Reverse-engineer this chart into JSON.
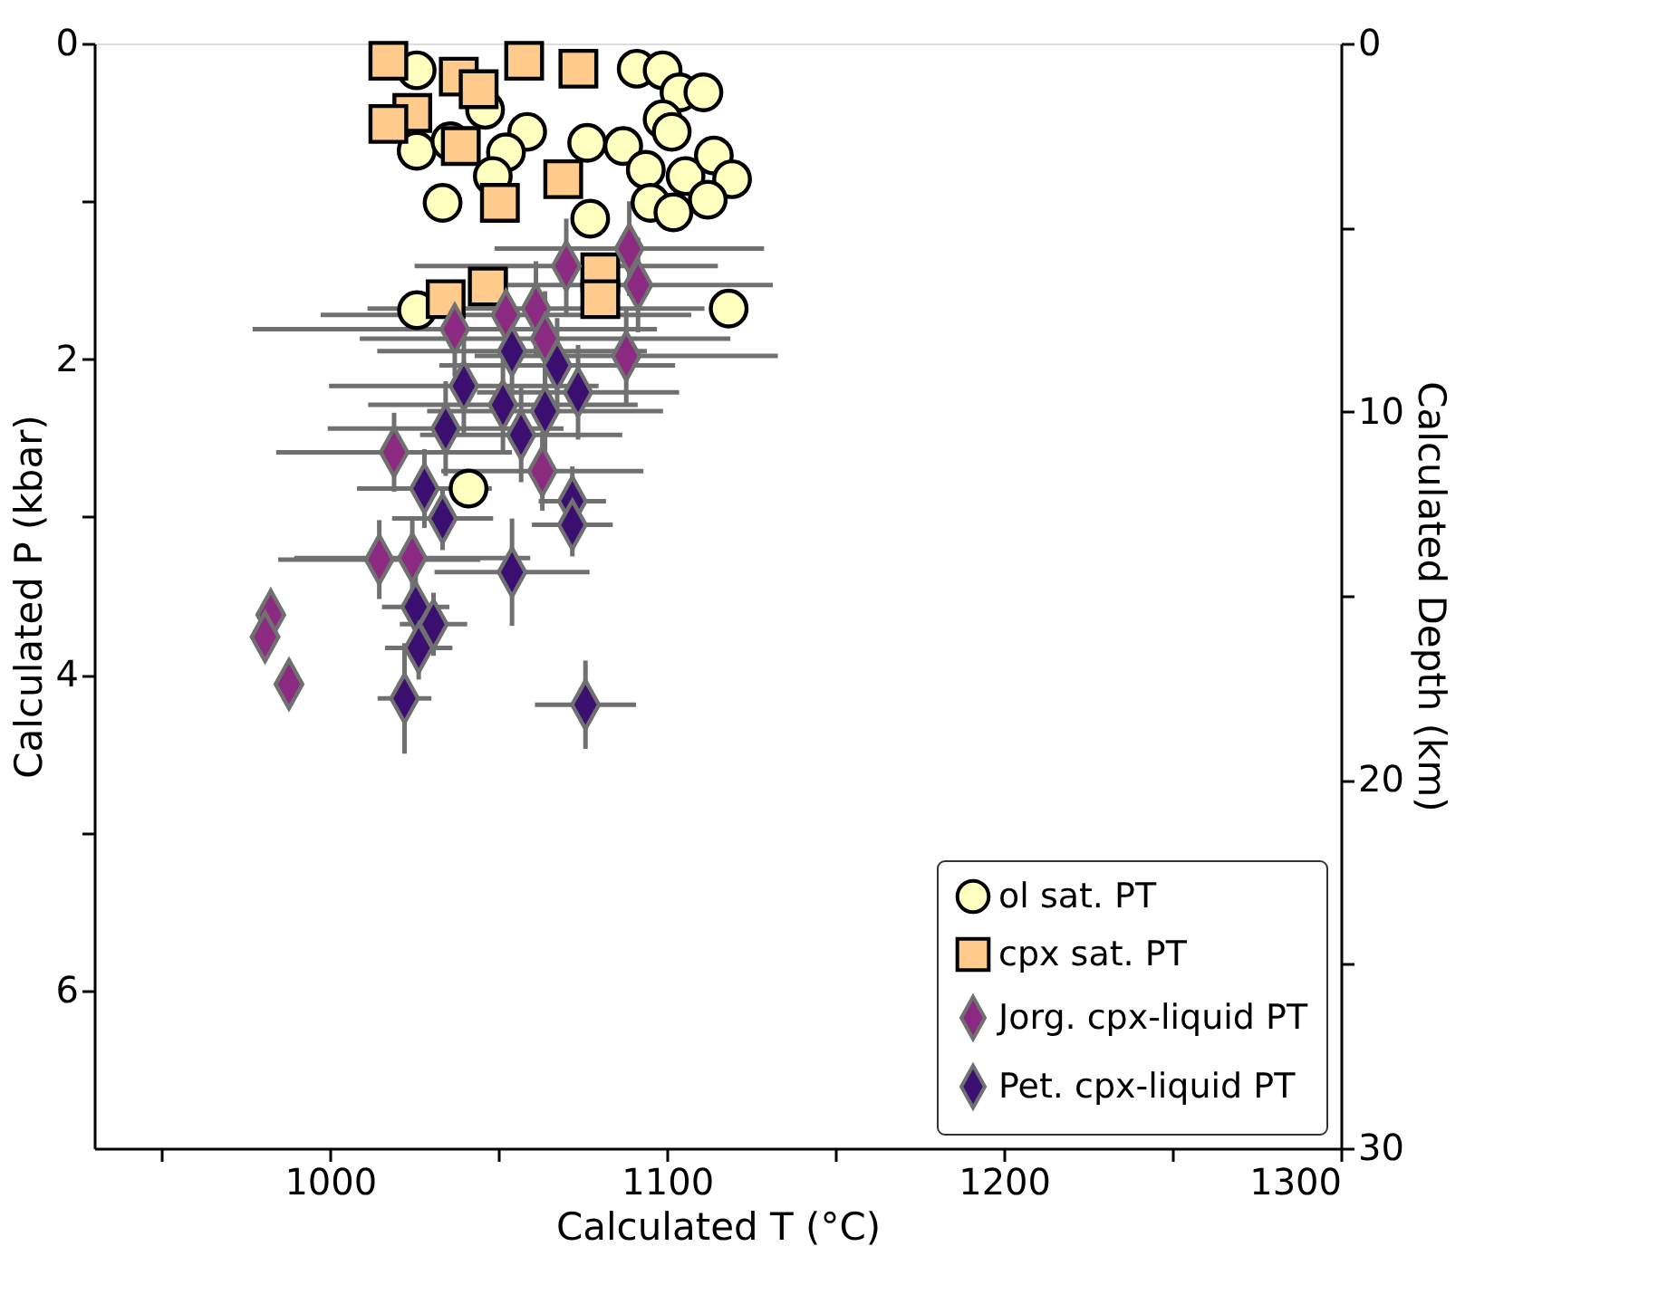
{
  "chart_data": {
    "type": "scatter",
    "xlabel": "Calculated T (°C)",
    "ylabel": "Calculated P (kbar)",
    "y2label": "Calculated Depth (km)",
    "xlim": [
      930,
      1300
    ],
    "xticks": [
      {
        "value": 950,
        "label": null
      },
      1000,
      {
        "value": 1050,
        "label": null
      },
      1100,
      {
        "value": 1150,
        "label": null
      },
      1200,
      {
        "value": 1250,
        "label": null
      },
      1300
    ],
    "ylim": [
      7,
      0
    ],
    "yticks": [
      0,
      {
        "value": 1,
        "label": null
      },
      2,
      {
        "value": 3,
        "label": null
      },
      4,
      {
        "value": 5,
        "label": null
      },
      6
    ],
    "y2lim": [
      30,
      0
    ],
    "y2ticks": [
      0,
      {
        "value": 5,
        "label": null
      },
      10,
      {
        "value": 15,
        "label": null
      },
      20,
      {
        "value": 25,
        "label": null
      },
      30
    ],
    "legend": "bottom right",
    "grid": false,
    "series": [
      {
        "name": "ol sat. PT",
        "marker": "circle",
        "color": "#ffffbf",
        "x": [
          1025.7,
          1091,
          1098.7,
          1103.7,
          1110.8,
          1046,
          1098.7,
          1101.4,
          1058.5,
          1025.7,
          1035.7,
          1052.2,
          1076.3,
          1087,
          1048.3,
          1093.7,
          1105.5,
          1113.9,
          1119.3,
          1033.4,
          1095.1,
          1101.9,
          1112.1,
          1077.2,
          1025.8,
          1118.3,
          1041.1
        ],
        "values": [
          0.17,
          0.16,
          0.17,
          0.31,
          0.31,
          0.42,
          0.48,
          0.56,
          0.56,
          0.68,
          0.62,
          0.69,
          0.63,
          0.65,
          0.84,
          0.8,
          0.84,
          0.71,
          0.86,
          1.01,
          1.01,
          1.07,
          0.99,
          1.11,
          1.69,
          1.68,
          2.82
        ]
      },
      {
        "name": "cpx sat. PT",
        "marker": "square",
        "color": "#fecb8c",
        "x": [
          1017.3,
          1057.6,
          1073.7,
          1038.2,
          1044.1,
          1024.4,
          1017.3,
          1038.8,
          1069.2,
          1050.4,
          1034.3,
          1046.8,
          1080.2,
          1080.2
        ],
        "values": [
          0.11,
          0.11,
          0.16,
          0.21,
          0.29,
          0.44,
          0.51,
          0.65,
          0.86,
          1.01,
          1.62,
          1.54,
          1.45,
          1.62
        ]
      },
      {
        "name": "Jorg. cpx-liquid PT",
        "marker": "diamond",
        "color": "#8c2981",
        "x": [
          1070.1,
          1088.8,
          1061.1,
          1052.2,
          1037,
          1087.9,
          1063.8,
          1091.4,
          1063,
          1019,
          1014.6,
          1024.4,
          982.4,
          980.7,
          987.8
        ],
        "values": [
          1.41,
          1.3,
          1.68,
          1.72,
          1.81,
          1.98,
          1.87,
          1.53,
          2.71,
          2.59,
          3.27,
          3.26,
          3.62,
          3.76,
          4.06
        ],
        "xerrors": [
          45,
          40,
          50,
          55,
          60,
          45,
          55,
          40,
          30,
          35,
          30,
          35,
          null,
          null,
          null
        ],
        "errors": [
          0.3,
          0.3,
          0.3,
          0.3,
          0.3,
          0.3,
          0.3,
          0.3,
          0.25,
          0.25,
          0.25,
          0.25,
          null,
          null,
          null
        ]
      },
      {
        "name": "Pet. cpx-liquid PT",
        "marker": "diamond",
        "color": "#3b0f70",
        "x": [
          1039.7,
          1054,
          1067.4,
          1051.3,
          1063.8,
          1073.6,
          1034.3,
          1056.7,
          1028,
          1033.4,
          1071.9,
          1071.9,
          1054,
          1025.4,
          1030.7,
          1026.3,
          1022.1,
          1075.8
        ],
        "values": [
          2.17,
          1.95,
          2.04,
          2.29,
          2.33,
          2.21,
          2.44,
          2.48,
          2.82,
          3.01,
          2.9,
          3.05,
          3.35,
          3.57,
          3.68,
          3.83,
          4.15,
          4.19
        ],
        "xerrors": [
          40,
          40,
          35,
          40,
          35,
          30,
          35,
          30,
          20,
          15,
          10,
          12,
          23,
          10,
          10,
          10,
          8,
          15
        ],
        "errors": [
          0.3,
          0.3,
          0.3,
          0.3,
          0.3,
          0.3,
          0.3,
          0.3,
          0.25,
          0.2,
          0.22,
          0.2,
          0.34,
          0.2,
          0.2,
          0.2,
          0.35,
          0.28
        ]
      }
    ]
  }
}
